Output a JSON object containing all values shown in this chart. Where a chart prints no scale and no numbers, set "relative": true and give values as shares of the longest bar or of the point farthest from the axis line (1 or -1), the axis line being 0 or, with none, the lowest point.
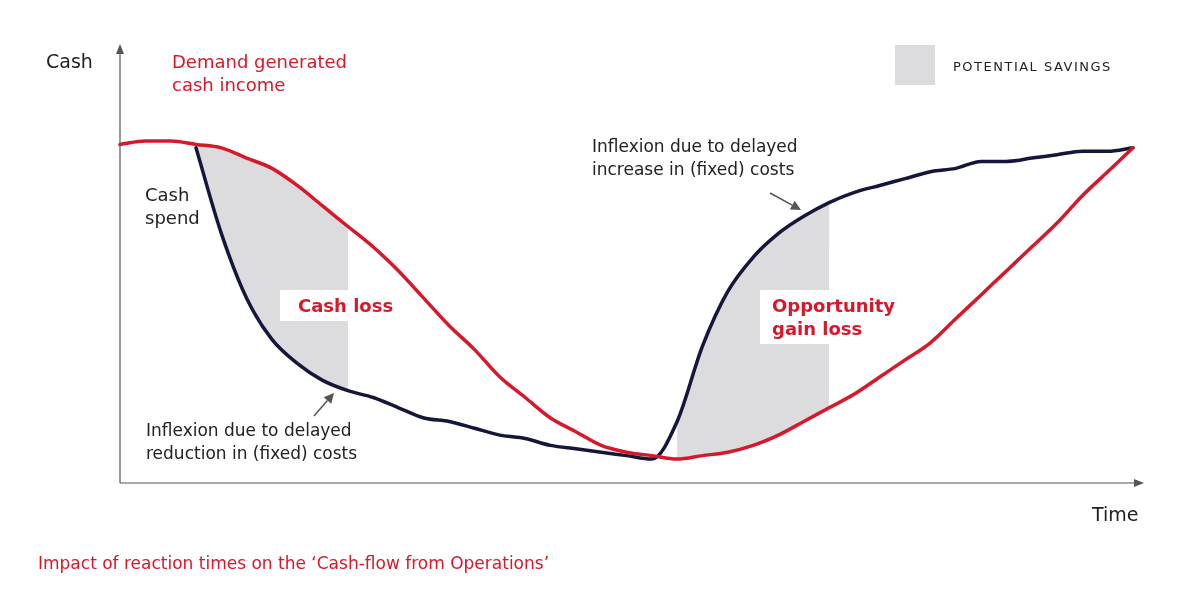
{
  "chart_data": {
    "type": "line",
    "relative": true,
    "xlabel": "Time",
    "ylabel": "Cash",
    "categories": [
      null,
      null,
      null,
      null,
      null,
      null,
      null,
      null,
      null,
      null,
      null,
      null,
      null,
      null,
      null,
      null,
      null,
      null,
      null,
      null,
      null,
      null,
      null,
      null,
      null,
      null,
      null,
      null,
      null,
      null,
      null,
      null,
      null,
      null,
      null,
      null,
      null,
      null,
      null,
      null,
      null
    ],
    "series": [
      {
        "name": "Demand generated cash income",
        "type": "line",
        "color": "#d7182a",
        "values": [
          0.99,
          1.0,
          1.0,
          0.99,
          0.98,
          0.95,
          0.92,
          0.87,
          0.81,
          0.75,
          0.69,
          0.62,
          0.54,
          0.46,
          0.39,
          0.31,
          0.25,
          0.19,
          0.15,
          0.11,
          0.09,
          0.08,
          0.07,
          0.08,
          0.09,
          0.11,
          0.14,
          0.18,
          0.22,
          0.26,
          0.31,
          0.36,
          0.41,
          0.48,
          0.55,
          0.62,
          0.69,
          0.76,
          0.84,
          0.91,
          0.98
        ],
        "lower": [
          null,
          null,
          null,
          0.98,
          0.73,
          0.54,
          0.42,
          0.35,
          0.3,
          0.27,
          null,
          null,
          null,
          null,
          null,
          null,
          null,
          null,
          null,
          null,
          null,
          null,
          0.07,
          0.08,
          0.09,
          0.11,
          0.14,
          0.18,
          0.22,
          null,
          null,
          null,
          null,
          null,
          null,
          null,
          null,
          null,
          null,
          null,
          null
        ],
        "upper": [
          null,
          null,
          null,
          0.99,
          0.98,
          0.95,
          0.92,
          0.87,
          0.81,
          0.75,
          null,
          null,
          null,
          null,
          null,
          null,
          null,
          null,
          null,
          null,
          null,
          null,
          0.18,
          0.4,
          0.56,
          0.66,
          0.73,
          0.78,
          0.82,
          null,
          null,
          null,
          null,
          null,
          null,
          null,
          null,
          null,
          null,
          null,
          null
        ]
      },
      {
        "name": "Cash spend",
        "type": "line",
        "color": "#14173a",
        "values": [
          null,
          null,
          null,
          0.98,
          0.73,
          0.54,
          0.42,
          0.35,
          0.3,
          0.27,
          0.25,
          0.22,
          0.19,
          0.18,
          0.16,
          0.14,
          0.13,
          0.11,
          0.1,
          0.09,
          0.08,
          0.07,
          0.18,
          0.4,
          0.56,
          0.66,
          0.73,
          0.78,
          0.82,
          0.85,
          0.87,
          0.89,
          0.91,
          0.92,
          0.94,
          0.94,
          0.95,
          0.96,
          0.97,
          0.97,
          0.98
        ]
      }
    ],
    "annotations": [
      "Cash loss",
      "Opportunity gain loss",
      "Inflexion due to delayed reduction in (fixed) costs",
      "Inflexion due to delayed increase in (fixed) costs",
      "Impact of reaction times on the ‘Cash-flow from Operations’",
      "POTENTIAL SAVINGS"
    ]
  }
}
